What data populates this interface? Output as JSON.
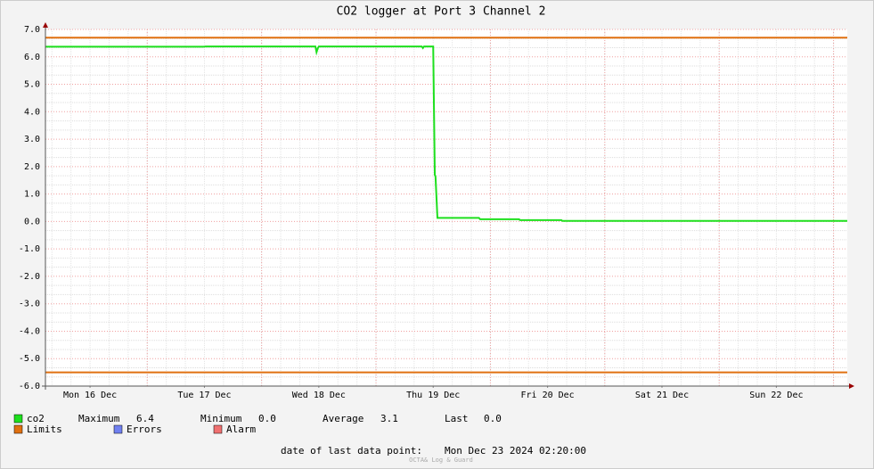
{
  "chart_data": {
    "type": "line",
    "title": "CO2 logger at Port 3 Channel 2",
    "xlim": [
      16.11,
      23.12
    ],
    "xticks": [
      {
        "value": 16.5,
        "label": "Mon 16 Dec"
      },
      {
        "value": 17.5,
        "label": "Tue 17 Dec"
      },
      {
        "value": 18.5,
        "label": "Wed 18 Dec"
      },
      {
        "value": 19.5,
        "label": "Thu 19 Dec"
      },
      {
        "value": 20.5,
        "label": "Fri 20 Dec"
      },
      {
        "value": 21.5,
        "label": "Sat 21 Dec"
      },
      {
        "value": 22.5,
        "label": "Sun 22 Dec"
      }
    ],
    "xgrid": [
      17,
      18,
      19,
      20,
      21,
      22,
      23
    ],
    "ylim": [
      -6,
      7
    ],
    "yticks": [
      {
        "value": -6,
        "label": "-6.0"
      },
      {
        "value": -5,
        "label": "-5.0"
      },
      {
        "value": -4,
        "label": "-4.0"
      },
      {
        "value": -3,
        "label": "-3.0"
      },
      {
        "value": -2,
        "label": "-2.0"
      },
      {
        "value": -1,
        "label": "-1.0"
      },
      {
        "value": 0,
        "label": "0.0"
      },
      {
        "value": 1,
        "label": "1.0"
      },
      {
        "value": 2,
        "label": "2.0"
      },
      {
        "value": 3,
        "label": "3.0"
      },
      {
        "value": 4,
        "label": "4.0"
      },
      {
        "value": 5,
        "label": "5.0"
      },
      {
        "value": 6,
        "label": "6.0"
      },
      {
        "value": 7,
        "label": "7.0"
      }
    ],
    "grid": true,
    "series": [
      {
        "name": "co2",
        "color": "#1ee01e",
        "x": [
          16.11,
          17.5,
          17.51,
          18.47,
          18.48,
          18.49,
          18.5,
          19.4,
          19.41,
          19.42,
          19.5,
          19.514,
          19.52,
          19.537,
          19.9,
          19.91,
          20.25,
          20.26,
          20.62,
          20.63,
          23.12
        ],
        "values": [
          6.37,
          6.37,
          6.38,
          6.38,
          6.17,
          6.3,
          6.38,
          6.38,
          6.32,
          6.38,
          6.38,
          1.7,
          1.65,
          0.13,
          0.13,
          0.08,
          0.08,
          0.05,
          0.05,
          0.02,
          0.02
        ]
      }
    ],
    "limits": {
      "name": "Limits",
      "color": "#e07010",
      "values": [
        6.7,
        -5.5
      ]
    },
    "legend_extra": [
      {
        "name": "Errors",
        "color": "#7080f0"
      },
      {
        "name": "Alarm",
        "color": "#f07070"
      }
    ],
    "stats": [
      {
        "label": "Maximum",
        "value": "6.4"
      },
      {
        "label": "Minimum",
        "value": "0.0"
      },
      {
        "label": "Average",
        "value": "3.1"
      },
      {
        "label": "Last",
        "value": "0.0"
      }
    ],
    "footer_label": "date of last data point:",
    "footer_value": "Mon Dec 23 2024 02:20:00",
    "watermark": "OCTA& Log & Guard"
  }
}
